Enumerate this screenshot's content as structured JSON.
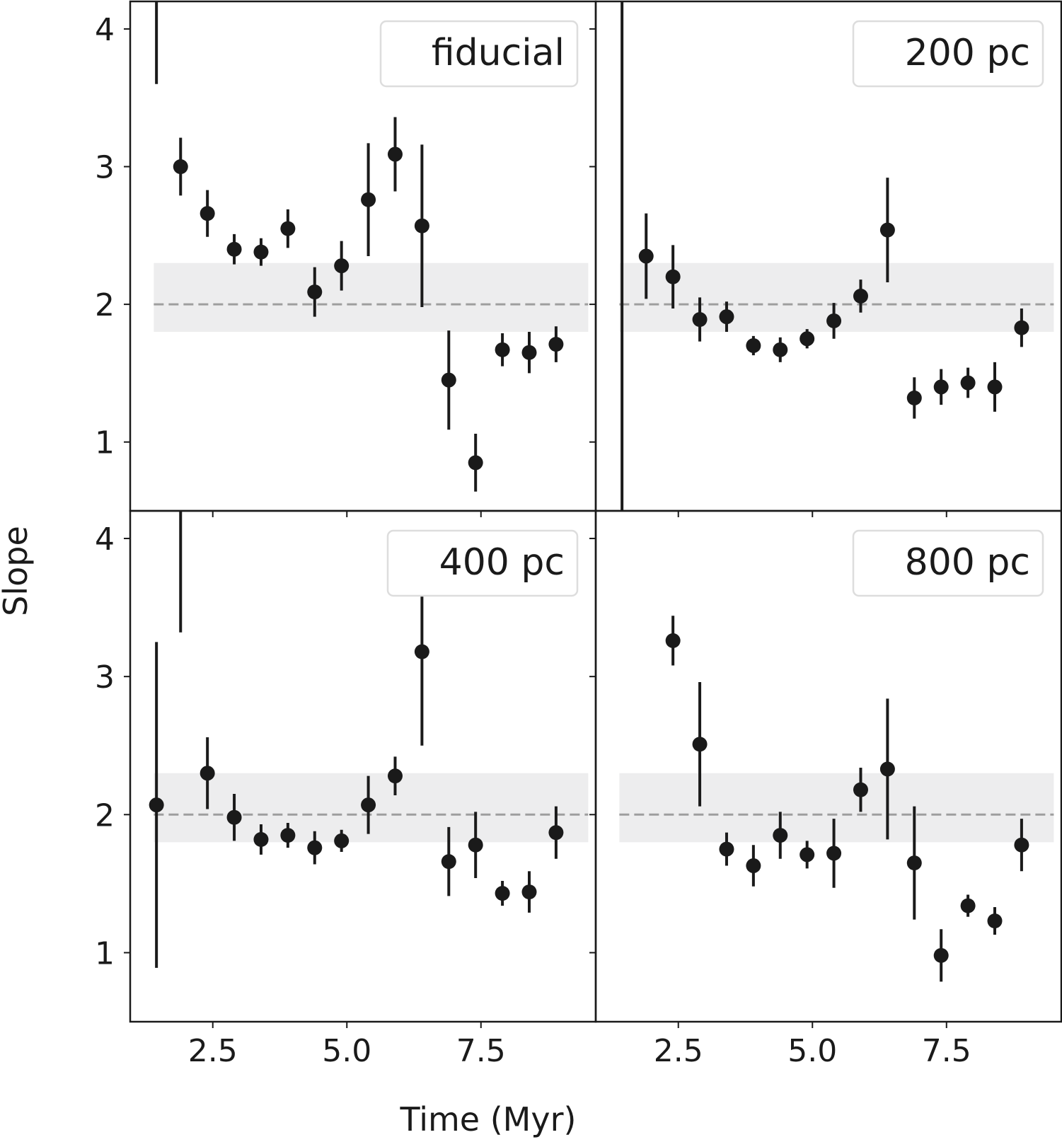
{
  "figure": {
    "xlabel": "Time (Myr)",
    "ylabel": "Slope"
  },
  "chart_data": [
    {
      "type": "scatter",
      "legend": "fiducial",
      "legend_placement": "top-right",
      "points": [
        {
          "x": 1.45,
          "y": 4.25,
          "lo": 3.6,
          "hi": 4.7
        },
        {
          "x": 1.9,
          "y": 3.0,
          "lo": 2.79,
          "hi": 3.21
        },
        {
          "x": 2.4,
          "y": 2.66,
          "lo": 2.49,
          "hi": 2.83
        },
        {
          "x": 2.9,
          "y": 2.4,
          "lo": 2.29,
          "hi": 2.51
        },
        {
          "x": 3.4,
          "y": 2.38,
          "lo": 2.28,
          "hi": 2.48
        },
        {
          "x": 3.9,
          "y": 2.55,
          "lo": 2.41,
          "hi": 2.69
        },
        {
          "x": 4.4,
          "y": 2.09,
          "lo": 1.91,
          "hi": 2.27
        },
        {
          "x": 4.9,
          "y": 2.28,
          "lo": 2.1,
          "hi": 2.46
        },
        {
          "x": 5.4,
          "y": 2.76,
          "lo": 2.35,
          "hi": 3.17
        },
        {
          "x": 5.9,
          "y": 3.09,
          "lo": 2.82,
          "hi": 3.36
        },
        {
          "x": 6.4,
          "y": 2.57,
          "lo": 1.98,
          "hi": 3.16
        },
        {
          "x": 6.9,
          "y": 1.45,
          "lo": 1.09,
          "hi": 1.81
        },
        {
          "x": 7.4,
          "y": 0.85,
          "lo": 0.64,
          "hi": 1.06
        },
        {
          "x": 7.9,
          "y": 1.67,
          "lo": 1.55,
          "hi": 1.79
        },
        {
          "x": 8.4,
          "y": 1.65,
          "lo": 1.5,
          "hi": 1.8
        },
        {
          "x": 8.9,
          "y": 1.71,
          "lo": 1.58,
          "hi": 1.84
        }
      ]
    },
    {
      "type": "scatter",
      "legend": "200 pc",
      "legend_placement": "top-right",
      "points": [
        {
          "x": 1.45,
          "y": 4.25,
          "lo": 0.3,
          "hi": 4.7
        },
        {
          "x": 1.9,
          "y": 2.35,
          "lo": 2.04,
          "hi": 2.66
        },
        {
          "x": 2.4,
          "y": 2.2,
          "lo": 1.97,
          "hi": 2.43
        },
        {
          "x": 2.9,
          "y": 1.89,
          "lo": 1.73,
          "hi": 2.05
        },
        {
          "x": 3.4,
          "y": 1.91,
          "lo": 1.8,
          "hi": 2.02
        },
        {
          "x": 3.9,
          "y": 1.7,
          "lo": 1.63,
          "hi": 1.77
        },
        {
          "x": 4.4,
          "y": 1.67,
          "lo": 1.58,
          "hi": 1.76
        },
        {
          "x": 4.9,
          "y": 1.75,
          "lo": 1.68,
          "hi": 1.82
        },
        {
          "x": 5.4,
          "y": 1.88,
          "lo": 1.75,
          "hi": 2.01
        },
        {
          "x": 5.9,
          "y": 2.06,
          "lo": 1.94,
          "hi": 2.18
        },
        {
          "x": 6.4,
          "y": 2.54,
          "lo": 2.16,
          "hi": 2.92
        },
        {
          "x": 6.9,
          "y": 1.32,
          "lo": 1.17,
          "hi": 1.47
        },
        {
          "x": 7.4,
          "y": 1.4,
          "lo": 1.27,
          "hi": 1.53
        },
        {
          "x": 7.9,
          "y": 1.43,
          "lo": 1.32,
          "hi": 1.54
        },
        {
          "x": 8.4,
          "y": 1.4,
          "lo": 1.22,
          "hi": 1.58
        },
        {
          "x": 8.9,
          "y": 1.83,
          "lo": 1.69,
          "hi": 1.97
        }
      ]
    },
    {
      "type": "scatter",
      "legend": "400 pc",
      "legend_placement": "top-right",
      "points": [
        {
          "x": 1.45,
          "y": 2.07,
          "lo": 0.89,
          "hi": 3.25
        },
        {
          "x": 1.9,
          "y": 4.25,
          "lo": 3.32,
          "hi": 4.7
        },
        {
          "x": 2.4,
          "y": 2.3,
          "lo": 2.04,
          "hi": 2.56
        },
        {
          "x": 2.9,
          "y": 1.98,
          "lo": 1.81,
          "hi": 2.15
        },
        {
          "x": 3.4,
          "y": 1.82,
          "lo": 1.71,
          "hi": 1.93
        },
        {
          "x": 3.9,
          "y": 1.85,
          "lo": 1.76,
          "hi": 1.94
        },
        {
          "x": 4.4,
          "y": 1.76,
          "lo": 1.64,
          "hi": 1.88
        },
        {
          "x": 4.9,
          "y": 1.81,
          "lo": 1.73,
          "hi": 1.89
        },
        {
          "x": 5.4,
          "y": 2.07,
          "lo": 1.86,
          "hi": 2.28
        },
        {
          "x": 5.9,
          "y": 2.28,
          "lo": 2.14,
          "hi": 2.42
        },
        {
          "x": 6.4,
          "y": 3.18,
          "lo": 2.5,
          "hi": 3.86
        },
        {
          "x": 6.9,
          "y": 1.66,
          "lo": 1.41,
          "hi": 1.91
        },
        {
          "x": 7.4,
          "y": 1.78,
          "lo": 1.54,
          "hi": 2.02
        },
        {
          "x": 7.9,
          "y": 1.43,
          "lo": 1.34,
          "hi": 1.52
        },
        {
          "x": 8.4,
          "y": 1.44,
          "lo": 1.29,
          "hi": 1.59
        },
        {
          "x": 8.9,
          "y": 1.87,
          "lo": 1.68,
          "hi": 2.06
        }
      ]
    },
    {
      "type": "scatter",
      "legend": "800 pc",
      "legend_placement": "top-right",
      "points": [
        {
          "x": 2.4,
          "y": 3.26,
          "lo": 3.08,
          "hi": 3.44
        },
        {
          "x": 2.9,
          "y": 2.51,
          "lo": 2.06,
          "hi": 2.96
        },
        {
          "x": 3.4,
          "y": 1.75,
          "lo": 1.63,
          "hi": 1.87
        },
        {
          "x": 3.9,
          "y": 1.63,
          "lo": 1.48,
          "hi": 1.78
        },
        {
          "x": 4.4,
          "y": 1.85,
          "lo": 1.68,
          "hi": 2.02
        },
        {
          "x": 4.9,
          "y": 1.71,
          "lo": 1.61,
          "hi": 1.81
        },
        {
          "x": 5.4,
          "y": 1.72,
          "lo": 1.47,
          "hi": 1.97
        },
        {
          "x": 5.9,
          "y": 2.18,
          "lo": 2.02,
          "hi": 2.34
        },
        {
          "x": 6.4,
          "y": 2.33,
          "lo": 1.82,
          "hi": 2.84
        },
        {
          "x": 6.9,
          "y": 1.65,
          "lo": 1.24,
          "hi": 2.06
        },
        {
          "x": 7.4,
          "y": 0.98,
          "lo": 0.79,
          "hi": 1.17
        },
        {
          "x": 7.9,
          "y": 1.34,
          "lo": 1.26,
          "hi": 1.42
        },
        {
          "x": 8.4,
          "y": 1.23,
          "lo": 1.13,
          "hi": 1.33
        },
        {
          "x": 8.9,
          "y": 1.78,
          "lo": 1.59,
          "hi": 1.97
        }
      ]
    }
  ],
  "axes": {
    "xlim": [
      0.96,
      9.64
    ],
    "ylim": [
      0.5,
      4.2
    ],
    "xticks": [
      2.5,
      5.0,
      7.5
    ],
    "xtick_labels": [
      "2.5",
      "5.0",
      "7.5"
    ],
    "yticks": [
      1,
      2,
      3,
      4
    ],
    "ytick_labels": [
      "1",
      "2",
      "3",
      "4"
    ],
    "grid": false,
    "sharex": true,
    "sharey": true
  },
  "reference": {
    "line_y": 2.0,
    "band": [
      1.8,
      2.3
    ],
    "band_xrange": [
      1.4,
      9.5
    ],
    "line_color": "#9e9e9e",
    "band_color": "#ededee"
  },
  "colors": {
    "marker": "#1a1a1a",
    "axes": "#1a1a1a",
    "legend_border": "#dddddd"
  }
}
